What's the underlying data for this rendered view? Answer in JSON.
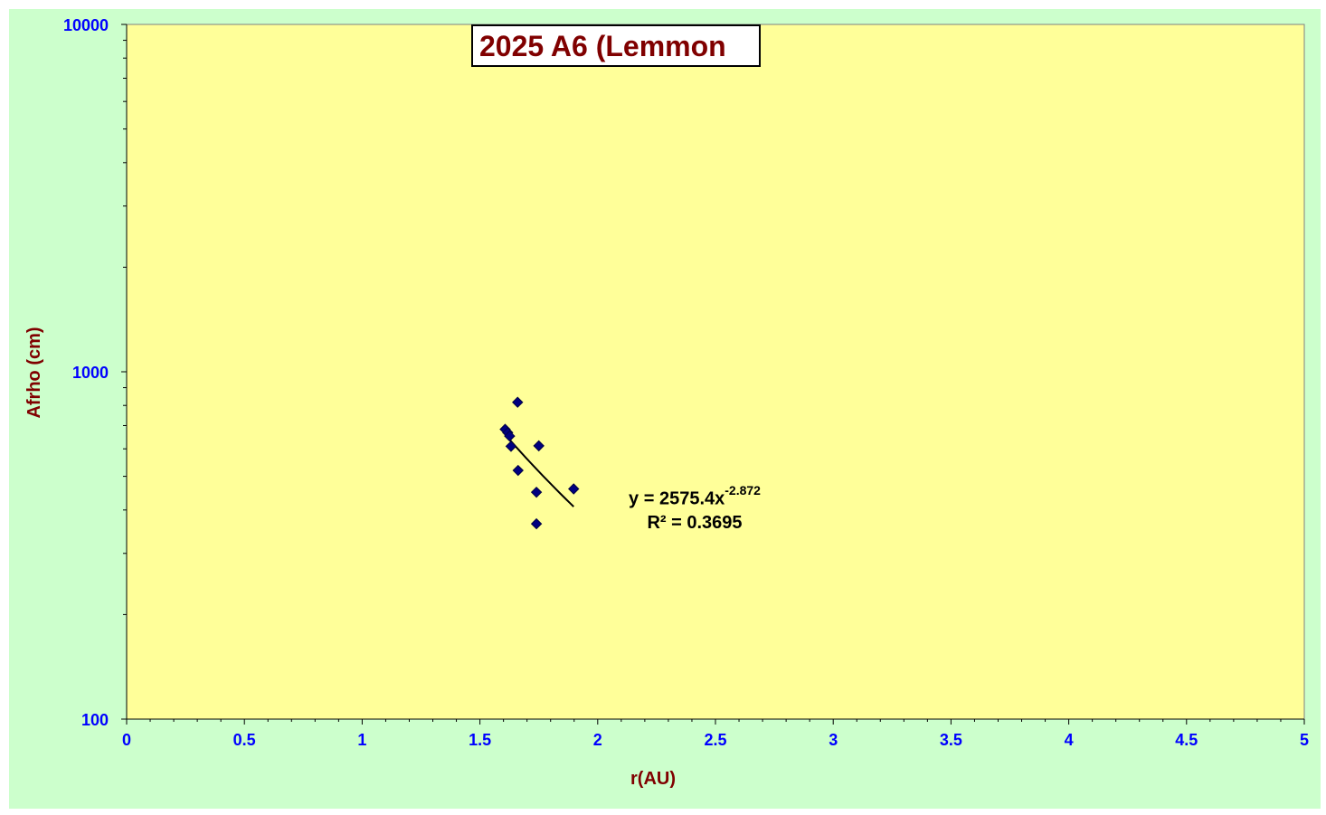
{
  "chart_data": {
    "type": "scatter",
    "title": "2025 A6 (Lemmon",
    "xlabel": "r(AU)",
    "ylabel": "Afrho (cm)",
    "xlim": [
      0,
      5
    ],
    "ylim": [
      100,
      10000
    ],
    "yscale": "log",
    "x_ticks": [
      "0",
      "0.5",
      "1",
      "1.5",
      "2",
      "2.5",
      "3",
      "3.5",
      "4",
      "4.5",
      "5"
    ],
    "y_ticks": [
      "100",
      "1000",
      "10000"
    ],
    "points": [
      {
        "x": 1.607,
        "y": 683
      },
      {
        "x": 1.618,
        "y": 668
      },
      {
        "x": 1.626,
        "y": 653
      },
      {
        "x": 1.632,
        "y": 610
      },
      {
        "x": 1.66,
        "y": 817
      },
      {
        "x": 1.662,
        "y": 520
      },
      {
        "x": 1.74,
        "y": 450
      },
      {
        "x": 1.74,
        "y": 365
      },
      {
        "x": 1.75,
        "y": 612
      },
      {
        "x": 1.898,
        "y": 460
      }
    ],
    "trendline": {
      "type": "power",
      "a": 2575.4,
      "b": -2.872,
      "x_range": [
        1.607,
        1.898
      ],
      "equation_base": "y = 2575.4x",
      "equation_exp": "-2.872",
      "r2_label": "R² = 0.3695"
    },
    "colors": {
      "outer_background": "#ccffcc",
      "plot_background": "#ffff99",
      "marker": "#000080",
      "axis_tick_labels": "#0000ff",
      "axis_titles": "#800000",
      "title_text": "#800000",
      "trendline": "#000000"
    },
    "grid": false,
    "legend": "none"
  }
}
